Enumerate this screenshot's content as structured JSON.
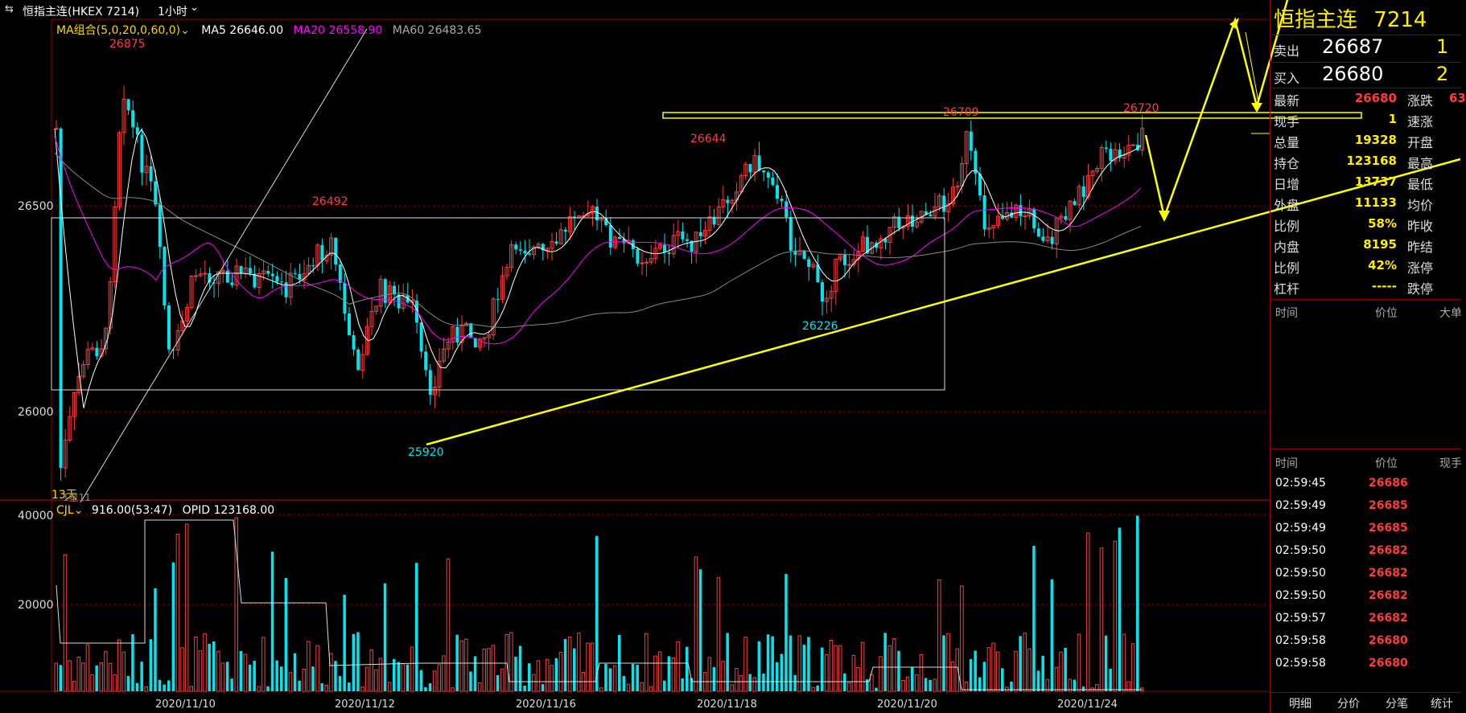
{
  "toolbar": {
    "symbol_icon": "link-icon",
    "symbol": "恒指主连(HKEX 7214)",
    "period": "1小时",
    "period_chevron": "chevron-down-icon"
  },
  "indicators": {
    "ma_group": "MA组合(5,0,20,0,60,0)",
    "ma5": "MA5 26646.00",
    "ma20": "MA20 26558.90",
    "ma60": "MA60 26483.65",
    "ma5_color": "#ffffff",
    "ma20_color": "#ff00ff",
    "ma60_color": "#aaaaaa"
  },
  "price_axis": [
    "26500",
    "26000"
  ],
  "volume_axis": [
    "40000",
    "20000"
  ],
  "volume_indicator": {
    "label": "CJL",
    "value": "916.00(53:47)",
    "opid": "OPID 123168.00"
  },
  "annotations": {
    "high_1": "26875",
    "high_2": "26492",
    "high_3": "26644",
    "high_4": "26709",
    "high_5": "26720",
    "low_1": "25920",
    "low_2": "26226",
    "days_label": "13天",
    "sub_label": "1星11"
  },
  "date_axis": [
    "2020/11/10",
    "2020/11/12",
    "2020/11/16",
    "2020/11/18",
    "2020/11/20",
    "2020/11/24"
  ],
  "quote": {
    "title": "恒指主连",
    "code": "7214",
    "ask_label": "卖出",
    "ask_price": "26687",
    "ask_qty": "1",
    "bid_label": "买入",
    "bid_price": "26680",
    "bid_qty": "2",
    "stats_left": [
      {
        "label": "最新",
        "value": "26680",
        "color": "red"
      },
      {
        "label": "现手",
        "value": "1",
        "color": "yellow"
      },
      {
        "label": "总量",
        "value": "19328",
        "color": "yellow"
      },
      {
        "label": "持仓",
        "value": "123168",
        "color": "yellow"
      },
      {
        "label": "日增",
        "value": "13737",
        "color": "yellow"
      },
      {
        "label": "外盘",
        "value": "11133",
        "color": "yellow"
      },
      {
        "label": "比例",
        "value": "58%",
        "color": "yellow"
      },
      {
        "label": "内盘",
        "value": "8195",
        "color": "yellow"
      },
      {
        "label": "比例",
        "value": "42%",
        "color": "yellow"
      },
      {
        "label": "杠杆",
        "value": "-----",
        "color": "yellow"
      }
    ],
    "stats_right": [
      {
        "label": "涨跌",
        "value": "63"
      },
      {
        "label": "速涨",
        "value": ""
      },
      {
        "label": "开盘",
        "value": ""
      },
      {
        "label": "最高",
        "value": ""
      },
      {
        "label": "最低",
        "value": ""
      },
      {
        "label": "均价",
        "value": ""
      },
      {
        "label": "昨收",
        "value": ""
      },
      {
        "label": "昨结",
        "value": ""
      },
      {
        "label": "涨停",
        "value": ""
      },
      {
        "label": "跌停",
        "value": ""
      }
    ]
  },
  "big_orders_header": {
    "time": "时间",
    "price": "价位",
    "big": "大单"
  },
  "ticks_header": {
    "time": "时间",
    "price": "价位",
    "qty": "现手"
  },
  "ticks": [
    {
      "time": "02:59:45",
      "price": "26686"
    },
    {
      "time": "02:59:49",
      "price": "26685"
    },
    {
      "time": "02:59:49",
      "price": "26685"
    },
    {
      "time": "02:59:50",
      "price": "26682"
    },
    {
      "time": "02:59:50",
      "price": "26682"
    },
    {
      "time": "02:59:50",
      "price": "26682"
    },
    {
      "time": "02:59:57",
      "price": "26682"
    },
    {
      "time": "02:59:58",
      "price": "26680"
    },
    {
      "time": "02:59:58",
      "price": "26680"
    }
  ],
  "bottom_tabs": [
    "明细",
    "分价",
    "分笔",
    "统计"
  ],
  "colors": {
    "up": "#ff3b3b",
    "down": "#00e5ee",
    "grid_red": "#8b0000",
    "yellow": "#ffff00",
    "magenta": "#ff00ff"
  }
}
